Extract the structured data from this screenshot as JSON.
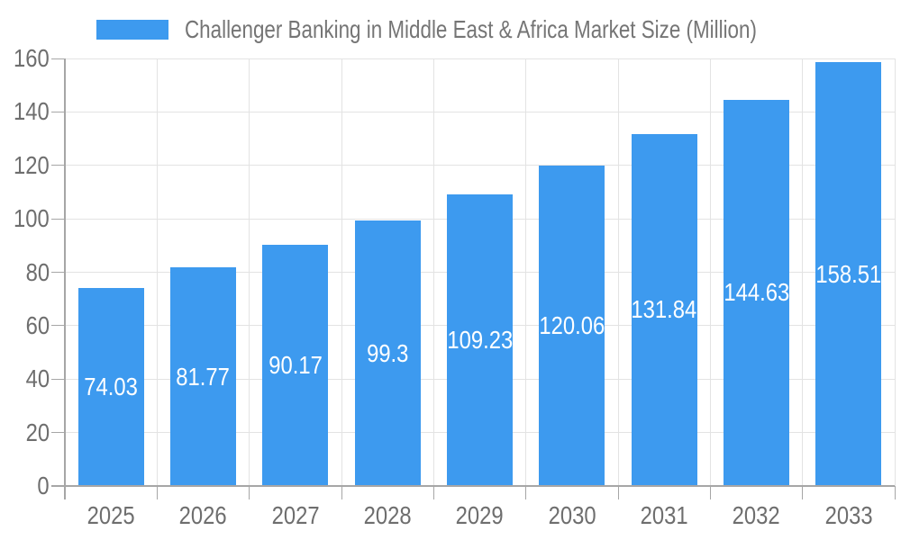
{
  "chart_data": {
    "type": "bar",
    "title": "Challenger Banking in Middle East & Africa Market Size (Million)",
    "legend_position": "top-center",
    "categories": [
      "2025",
      "2026",
      "2027",
      "2028",
      "2029",
      "2030",
      "2031",
      "2032",
      "2033"
    ],
    "values": [
      74.03,
      81.77,
      90.17,
      99.3,
      109.23,
      120.06,
      131.84,
      144.63,
      158.51
    ],
    "value_labels": [
      "74.03",
      "81.77",
      "90.17",
      "99.3",
      "109.23",
      "120.06",
      "131.84",
      "144.63",
      "158.51"
    ],
    "xlabel": "",
    "ylabel": "",
    "ylim": [
      0,
      160
    ],
    "yticks": [
      0,
      20,
      40,
      60,
      80,
      100,
      120,
      140,
      160
    ],
    "grid": true,
    "colors": {
      "bar": "#3d9aef",
      "value_label": "#ffffff",
      "grid_line": "#e3e3e3",
      "axis_line": "#a6a6a6",
      "tick_label": "#6e6e6e",
      "legend_text": "#757575",
      "background": "#ffffff"
    }
  }
}
